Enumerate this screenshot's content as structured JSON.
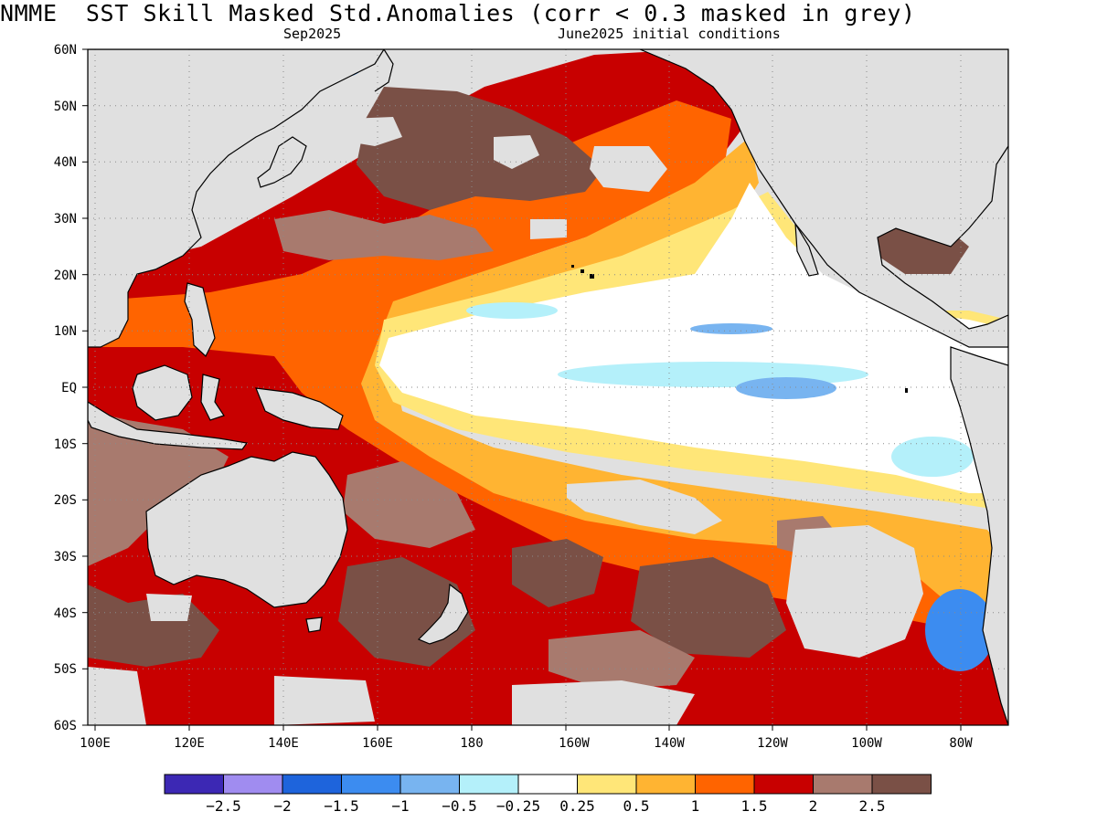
{
  "header": {
    "title": "NMME  SST Skill Masked Std.Anomalies (corr < 0.3 masked in grey)",
    "valid_month": "Sep2025",
    "init": "June2025 initial conditions"
  },
  "axes": {
    "lat_ticks": [
      "60N",
      "50N",
      "40N",
      "30N",
      "20N",
      "10N",
      "EQ",
      "10S",
      "20S",
      "30S",
      "40S",
      "50S",
      "60S"
    ],
    "lon_ticks": [
      "100E",
      "120E",
      "140E",
      "160E",
      "180",
      "160W",
      "140W",
      "120W",
      "100W",
      "80W"
    ]
  },
  "colorbar": {
    "colors": [
      "#3c28b4",
      "#a08cf0",
      "#1e64dc",
      "#3c8cf0",
      "#78b4f0",
      "#b4f0fa",
      "#ffffff",
      "#ffe678",
      "#ffb432",
      "#ff6400",
      "#c80000",
      "#a87a6e",
      "#7a5046"
    ],
    "labels": [
      "−2.5",
      "−2",
      "−1.5",
      "−1",
      "−0.5",
      "−0.25",
      "0.25",
      "0.5",
      "1",
      "1.5",
      "2",
      "2.5"
    ]
  },
  "map": {
    "mask_color": "#e0e0e0",
    "land_color": "#e0e0e0"
  }
}
